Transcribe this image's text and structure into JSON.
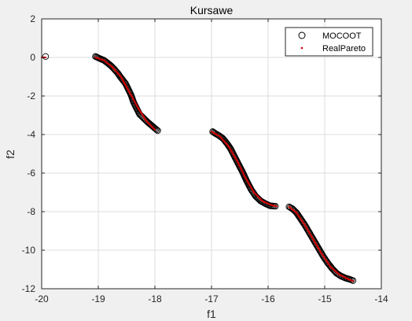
{
  "chart_data": {
    "type": "scatter",
    "title": "Kursawe",
    "xlabel": "f1",
    "ylabel": "f2",
    "xlim": [
      -20,
      -14
    ],
    "ylim": [
      -12,
      2
    ],
    "xticks": [
      -20,
      -19,
      -18,
      -17,
      -16,
      -15,
      -14
    ],
    "yticks": [
      -12,
      -10,
      -8,
      -6,
      -4,
      -2,
      0,
      2
    ],
    "xtick_labels": [
      "-20",
      "-19",
      "-18",
      "-17",
      "-16",
      "-15",
      "-14"
    ],
    "ytick_labels": [
      "-12",
      "-10",
      "-8",
      "-6",
      "-4",
      "-2",
      "0",
      "2"
    ],
    "grid": true,
    "legend_position": "top-right",
    "series": [
      {
        "name": "MOCOOT",
        "marker": "open-circle",
        "color": "#000000",
        "points": [
          [
            -19.93,
            0.05
          ],
          [
            -19.05,
            0.05
          ],
          [
            -18.98,
            -0.05
          ],
          [
            -18.9,
            -0.15
          ],
          [
            -18.83,
            -0.3
          ],
          [
            -18.77,
            -0.45
          ],
          [
            -18.72,
            -0.6
          ],
          [
            -18.66,
            -0.8
          ],
          [
            -18.6,
            -1.05
          ],
          [
            -18.52,
            -1.35
          ],
          [
            -18.47,
            -1.65
          ],
          [
            -18.42,
            -1.95
          ],
          [
            -18.38,
            -2.3
          ],
          [
            -18.33,
            -2.6
          ],
          [
            -18.27,
            -2.95
          ],
          [
            -18.2,
            -3.15
          ],
          [
            -18.13,
            -3.35
          ],
          [
            -18.05,
            -3.55
          ],
          [
            -17.95,
            -3.8
          ],
          [
            -16.98,
            -3.85
          ],
          [
            -16.93,
            -3.95
          ],
          [
            -16.87,
            -4.05
          ],
          [
            -16.8,
            -4.2
          ],
          [
            -16.73,
            -4.45
          ],
          [
            -16.66,
            -4.75
          ],
          [
            -16.6,
            -5.1
          ],
          [
            -16.53,
            -5.5
          ],
          [
            -16.45,
            -5.95
          ],
          [
            -16.38,
            -6.4
          ],
          [
            -16.3,
            -6.85
          ],
          [
            -16.22,
            -7.2
          ],
          [
            -16.13,
            -7.45
          ],
          [
            -16.04,
            -7.6
          ],
          [
            -15.96,
            -7.7
          ],
          [
            -15.87,
            -7.72
          ],
          [
            -15.63,
            -7.75
          ],
          [
            -15.57,
            -7.85
          ],
          [
            -15.5,
            -8.05
          ],
          [
            -15.43,
            -8.35
          ],
          [
            -15.35,
            -8.7
          ],
          [
            -15.27,
            -9.1
          ],
          [
            -15.19,
            -9.5
          ],
          [
            -15.11,
            -9.9
          ],
          [
            -15.03,
            -10.3
          ],
          [
            -14.95,
            -10.65
          ],
          [
            -14.87,
            -10.95
          ],
          [
            -14.79,
            -11.2
          ],
          [
            -14.71,
            -11.35
          ],
          [
            -14.63,
            -11.45
          ],
          [
            -14.55,
            -11.52
          ],
          [
            -14.5,
            -11.58
          ]
        ]
      },
      {
        "name": "RealPareto",
        "marker": "dot",
        "color": "#d40000",
        "curves": [
          [
            [
              -20.0,
              0.0
            ],
            [
              -19.93,
              0.0
            ]
          ],
          [
            [
              -19.05,
              0.0
            ],
            [
              -18.9,
              -0.15
            ],
            [
              -18.75,
              -0.5
            ],
            [
              -18.6,
              -1.0
            ],
            [
              -18.45,
              -1.8
            ],
            [
              -18.3,
              -2.6
            ],
            [
              -18.15,
              -3.3
            ],
            [
              -18.0,
              -3.75
            ]
          ],
          [
            [
              -17.0,
              -3.85
            ],
            [
              -16.85,
              -4.1
            ],
            [
              -16.7,
              -4.6
            ],
            [
              -16.55,
              -5.35
            ],
            [
              -16.4,
              -6.25
            ],
            [
              -16.25,
              -7.0
            ],
            [
              -16.1,
              -7.45
            ],
            [
              -15.95,
              -7.65
            ],
            [
              -15.85,
              -7.72
            ]
          ],
          [
            [
              -15.63,
              -7.75
            ],
            [
              -15.5,
              -8.05
            ],
            [
              -15.35,
              -8.7
            ],
            [
              -15.2,
              -9.45
            ],
            [
              -15.05,
              -10.2
            ],
            [
              -14.9,
              -10.85
            ],
            [
              -14.75,
              -11.25
            ],
            [
              -14.6,
              -11.48
            ],
            [
              -14.5,
              -11.6
            ]
          ]
        ]
      }
    ]
  }
}
